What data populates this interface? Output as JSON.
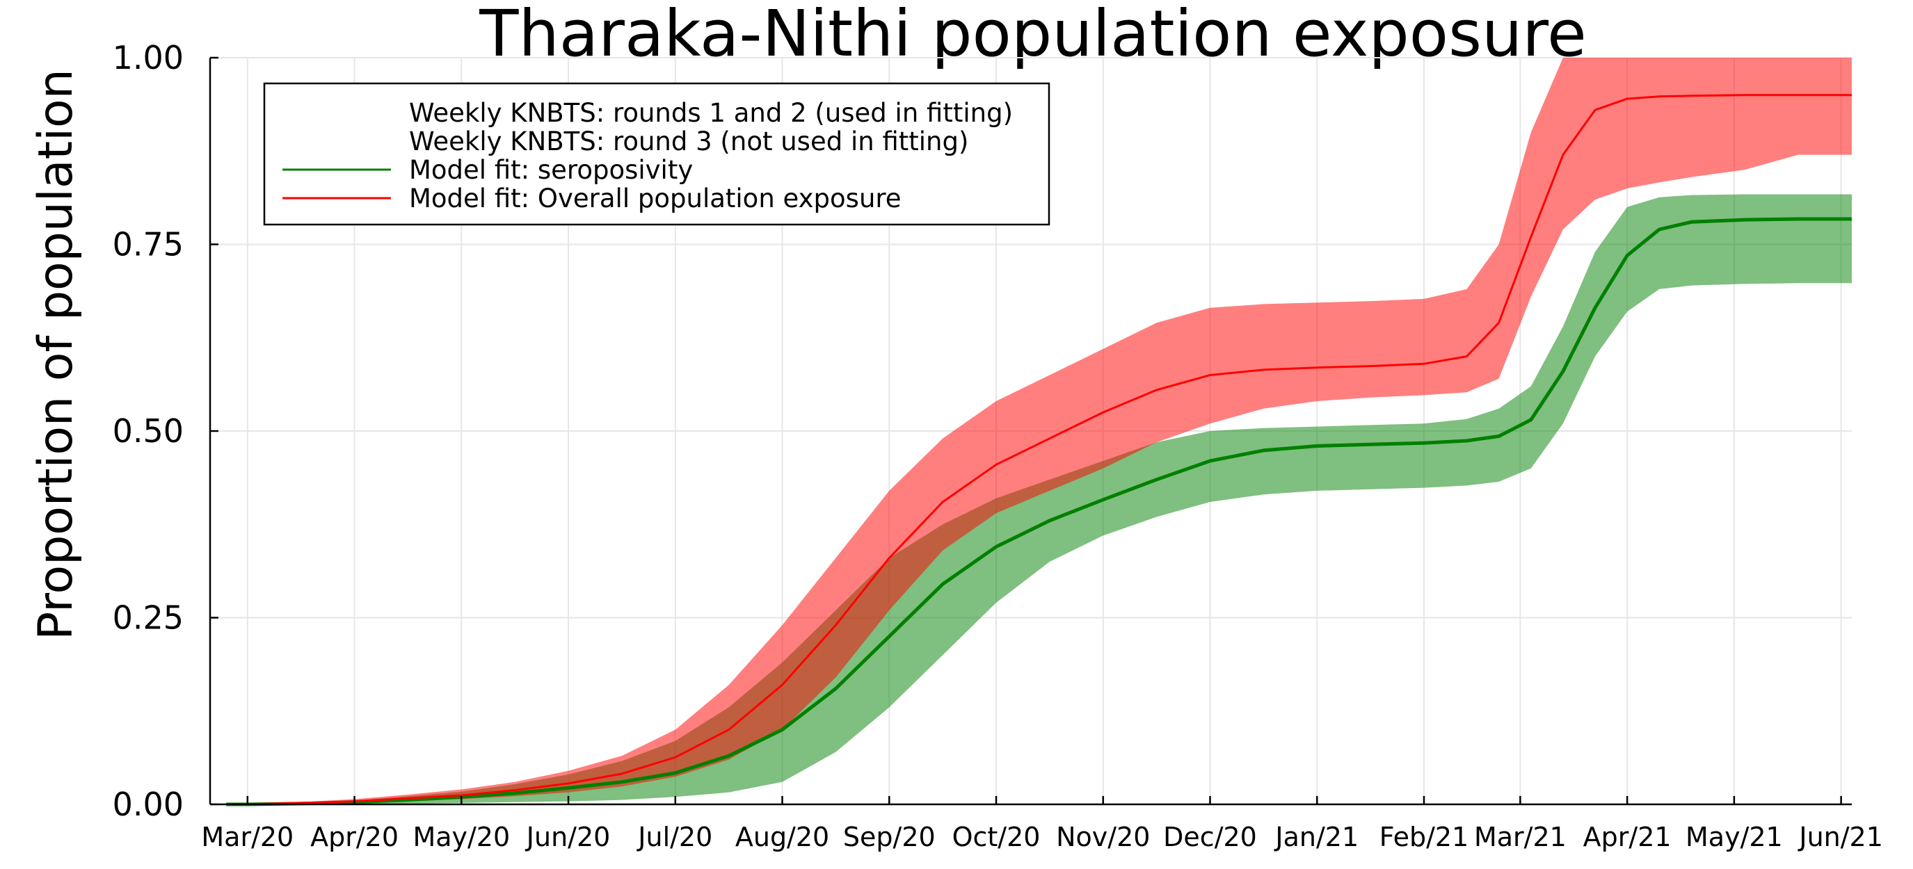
{
  "chart_data": {
    "type": "area",
    "title": "Tharaka-Nithi population exposure",
    "xlabel": "",
    "ylabel": "Proportion of population",
    "ylim": [
      0,
      1
    ],
    "xlim": [
      -0.35,
      15.0
    ],
    "yticks": [
      {
        "value": 0.0,
        "label": "0.00"
      },
      {
        "value": 0.25,
        "label": "0.25"
      },
      {
        "value": 0.5,
        "label": "0.50"
      },
      {
        "value": 0.75,
        "label": "0.75"
      },
      {
        "value": 1.0,
        "label": "1.00"
      }
    ],
    "xticks": [
      {
        "value": 0.0,
        "label": "Mar/20"
      },
      {
        "value": 1.0,
        "label": "Apr/20"
      },
      {
        "value": 2.0,
        "label": "May/20"
      },
      {
        "value": 3.0,
        "label": "Jun/20"
      },
      {
        "value": 4.0,
        "label": "Jul/20"
      },
      {
        "value": 5.0,
        "label": "Aug/20"
      },
      {
        "value": 6.0,
        "label": "Sep/20"
      },
      {
        "value": 7.0,
        "label": "Oct/20"
      },
      {
        "value": 8.0,
        "label": "Nov/20"
      },
      {
        "value": 9.0,
        "label": "Dec/20"
      },
      {
        "value": 10.0,
        "label": "Jan/21"
      },
      {
        "value": 11.0,
        "label": "Feb/21"
      },
      {
        "value": 11.9,
        "label": "Mar/21"
      },
      {
        "value": 12.9,
        "label": "Apr/21"
      },
      {
        "value": 13.9,
        "label": "May/21"
      },
      {
        "value": 14.9,
        "label": "Jun/21"
      }
    ],
    "x": [
      -0.2,
      0.0,
      0.5,
      1.0,
      1.5,
      2.0,
      2.5,
      3.0,
      3.5,
      4.0,
      4.5,
      5.0,
      5.5,
      6.0,
      6.5,
      7.0,
      7.5,
      8.0,
      8.5,
      9.0,
      9.5,
      10.0,
      10.5,
      11.0,
      11.4,
      11.7,
      12.0,
      12.3,
      12.6,
      12.9,
      13.2,
      13.5,
      14.0,
      14.5,
      15.0
    ],
    "series": [
      {
        "name": "Model fit: seroposivity",
        "color": "#008000",
        "values": [
          0.0,
          0.0,
          0.001,
          0.003,
          0.006,
          0.01,
          0.015,
          0.022,
          0.03,
          0.042,
          0.065,
          0.1,
          0.155,
          0.225,
          0.295,
          0.345,
          0.38,
          0.408,
          0.435,
          0.46,
          0.474,
          0.48,
          0.482,
          0.484,
          0.487,
          0.493,
          0.515,
          0.58,
          0.665,
          0.735,
          0.77,
          0.78,
          0.783,
          0.784,
          0.784
        ],
        "lower": [
          0.0,
          0.0,
          0.0,
          0.0,
          0.001,
          0.002,
          0.003,
          0.004,
          0.006,
          0.01,
          0.016,
          0.03,
          0.07,
          0.13,
          0.2,
          0.27,
          0.325,
          0.36,
          0.385,
          0.405,
          0.415,
          0.42,
          0.422,
          0.424,
          0.427,
          0.432,
          0.45,
          0.51,
          0.6,
          0.66,
          0.69,
          0.695,
          0.697,
          0.698,
          0.698
        ],
        "upper": [
          0.0,
          0.0,
          0.002,
          0.005,
          0.011,
          0.017,
          0.027,
          0.04,
          0.058,
          0.085,
          0.13,
          0.19,
          0.26,
          0.33,
          0.375,
          0.41,
          0.435,
          0.46,
          0.485,
          0.5,
          0.504,
          0.506,
          0.508,
          0.51,
          0.516,
          0.53,
          0.56,
          0.64,
          0.74,
          0.8,
          0.813,
          0.816,
          0.817,
          0.817,
          0.817
        ]
      },
      {
        "name": "Model fit: Overall population exposure",
        "color": "#ff0000",
        "values": [
          0.0,
          0.0,
          0.002,
          0.004,
          0.008,
          0.012,
          0.019,
          0.028,
          0.041,
          0.063,
          0.1,
          0.16,
          0.24,
          0.33,
          0.405,
          0.455,
          0.49,
          0.525,
          0.555,
          0.575,
          0.582,
          0.585,
          0.587,
          0.59,
          0.6,
          0.645,
          0.76,
          0.87,
          0.93,
          0.945,
          0.948,
          0.949,
          0.95,
          0.95,
          0.95
        ],
        "lower": [
          0.0,
          0.0,
          0.001,
          0.002,
          0.004,
          0.007,
          0.011,
          0.016,
          0.024,
          0.037,
          0.06,
          0.1,
          0.17,
          0.26,
          0.34,
          0.39,
          0.42,
          0.45,
          0.485,
          0.51,
          0.53,
          0.54,
          0.545,
          0.548,
          0.552,
          0.57,
          0.68,
          0.77,
          0.81,
          0.825,
          0.833,
          0.84,
          0.85,
          0.87,
          0.87
        ],
        "upper": [
          0.0,
          0.0,
          0.003,
          0.007,
          0.013,
          0.02,
          0.03,
          0.045,
          0.065,
          0.1,
          0.16,
          0.24,
          0.33,
          0.42,
          0.49,
          0.54,
          0.575,
          0.61,
          0.645,
          0.665,
          0.67,
          0.672,
          0.674,
          0.677,
          0.69,
          0.75,
          0.9,
          1.0,
          1.0,
          1.0,
          1.0,
          1.0,
          1.0,
          1.0,
          1.0
        ]
      }
    ],
    "legend": {
      "position": "top-left",
      "entries": [
        {
          "label": "Weekly KNBTS: rounds 1 and 2 (used in fitting)",
          "color": ""
        },
        {
          "label": "Weekly KNBTS: round 3 (not used in fitting)",
          "color": ""
        },
        {
          "label": "Model fit: seroposivity",
          "color": "#008000"
        },
        {
          "label": "Model fit: Overall population exposure",
          "color": "#ff0000"
        }
      ]
    },
    "grid": true
  }
}
